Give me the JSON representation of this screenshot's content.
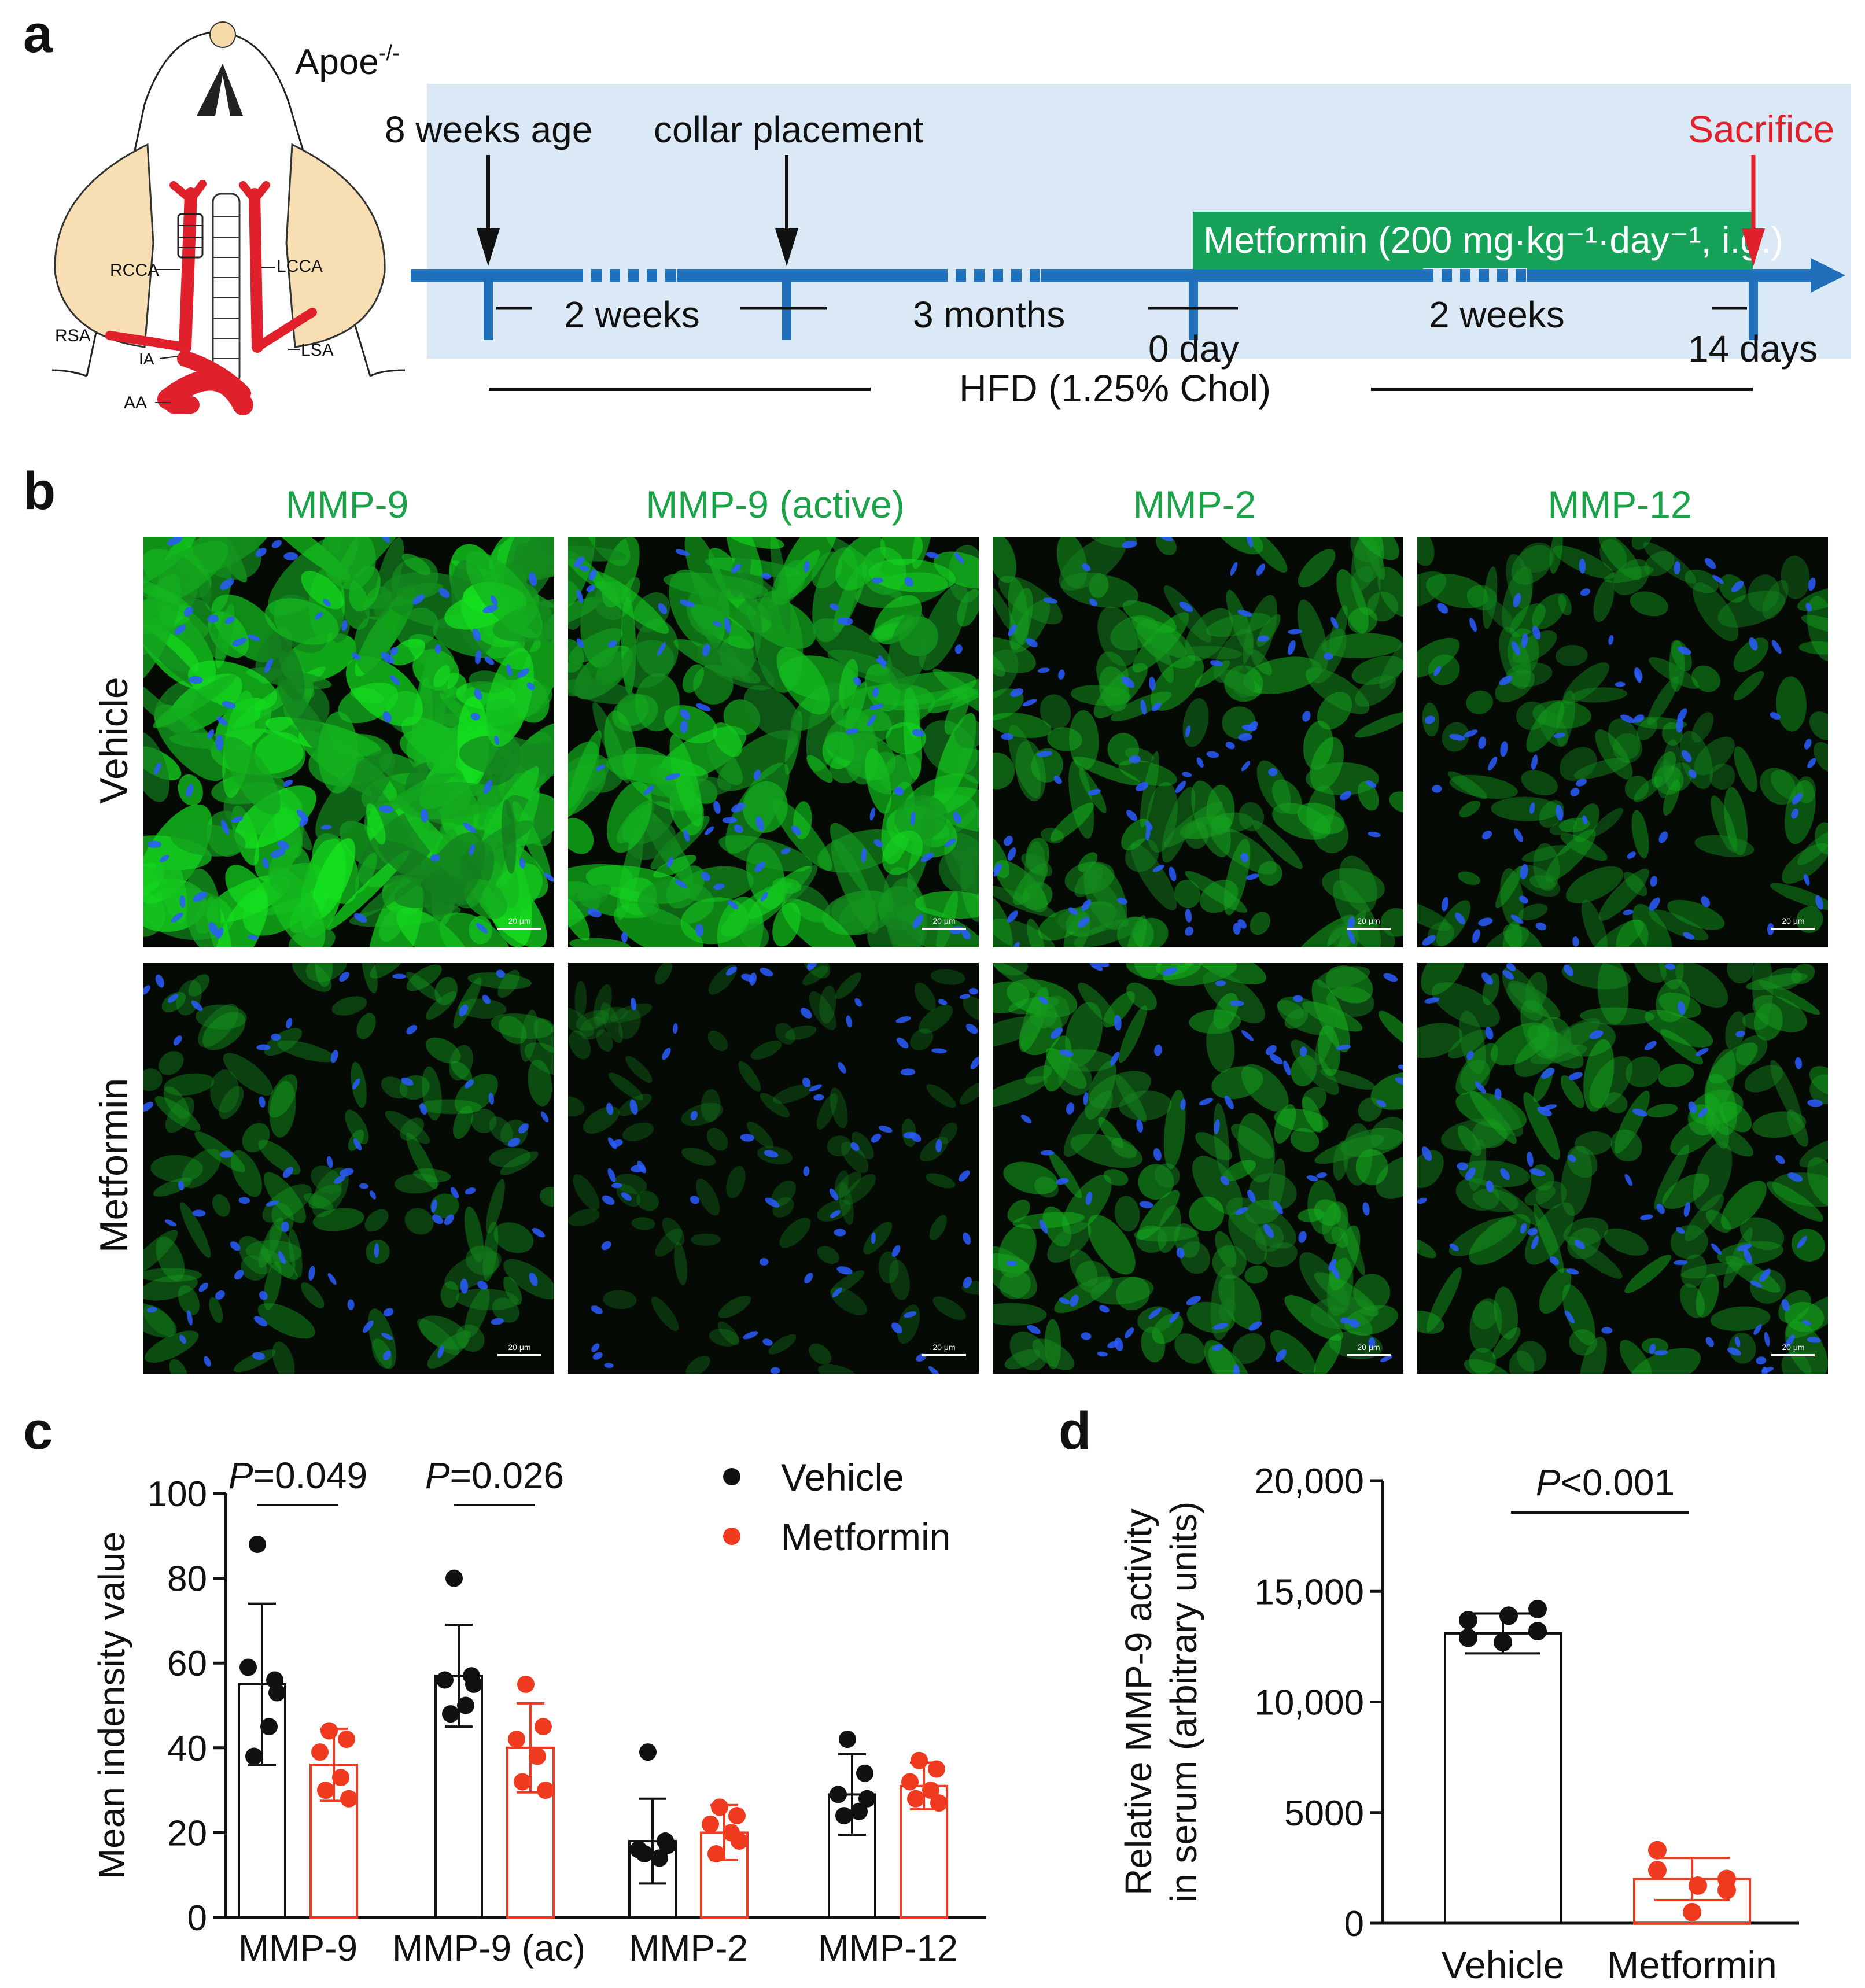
{
  "panels": {
    "a": "a",
    "b": "b",
    "c": "c",
    "d": "d"
  },
  "panel_a": {
    "genotype": "Apoe",
    "genotype_sup": "-/-",
    "vessels": {
      "rcca": "RCCA",
      "lcca": "LCCA",
      "rsa": "RSA",
      "ia": "IA",
      "lsa": "LSA",
      "aa": "AA"
    },
    "events": {
      "age": "8 weeks age",
      "collar": "collar placement",
      "sacrifice": "Sacrifice"
    },
    "intervals": {
      "i1": "2 weeks",
      "i2": "3 months",
      "i3": "2 weeks"
    },
    "days": {
      "start": "0 day",
      "end": "14 days"
    },
    "treatment": "Metformin (200 mg·kg⁻¹·day⁻¹, i.g.)",
    "diet": "HFD (1.25% Chol)",
    "colors": {
      "timeline": "#1f6fba",
      "background": "#dbe8f5",
      "treatment": "#17a25a",
      "sacrifice": "#e0202a"
    }
  },
  "panel_b": {
    "columns": [
      "MMP-9",
      "MMP-9 (active)",
      "MMP-2",
      "MMP-12"
    ],
    "rows": [
      "Vehicle",
      "Metformin"
    ],
    "scale_bar": "20 μm",
    "column_color": "#1aa349"
  },
  "chart_data": [
    {
      "type": "scatter",
      "title": "",
      "ylabel": "Mean indensity value",
      "ylim": [
        0,
        100
      ],
      "yticks": [
        "0",
        "20",
        "40",
        "60",
        "80",
        "100"
      ],
      "categories": [
        "MMP-9",
        "MMP-9 (ac)",
        "MMP-2",
        "MMP-12"
      ],
      "legend": [
        "Vehicle",
        "Metformin"
      ],
      "legend_position": "top-right",
      "series": [
        {
          "name": "Vehicle",
          "color": "#111111",
          "means": [
            55,
            57,
            18,
            29
          ],
          "sd": [
            19,
            12,
            10,
            9.5
          ],
          "points": [
            [
              88,
              56,
              59,
              45,
              38,
              53
            ],
            [
              80,
              57,
              56,
              50,
              48,
              55
            ],
            [
              39,
              18,
              16,
              14,
              15,
              17
            ],
            [
              42,
              34,
              29,
              25,
              24,
              28
            ]
          ]
        },
        {
          "name": "Metformin",
          "color": "#f03a1f",
          "means": [
            36,
            40,
            20,
            31
          ],
          "sd": [
            8.5,
            10.5,
            6.5,
            5.5
          ],
          "points": [
            [
              44,
              42,
              39,
              33,
              30,
              28
            ],
            [
              55,
              45,
              42,
              38,
              32,
              30
            ],
            [
              26,
              24,
              22,
              20,
              15,
              18
            ],
            [
              37,
              35,
              32,
              30,
              28,
              27
            ]
          ]
        }
      ],
      "annotations": [
        {
          "label_italic": "P",
          "label_rest": "=0.049",
          "group": 0
        },
        {
          "label_italic": "P",
          "label_rest": "=0.026",
          "group": 1
        }
      ]
    },
    {
      "type": "bar",
      "title": "",
      "ylabel_line1": "Relative MMP-9 activity",
      "ylabel_line2": "in serum (arbitrary units)",
      "ylim": [
        0,
        20000
      ],
      "yticks": [
        "0",
        "5000",
        "10,000",
        "15,000",
        "20,000"
      ],
      "categories": [
        "Vehicle",
        "Metformin"
      ],
      "values": [
        13100,
        2000
      ],
      "sd": [
        900,
        950
      ],
      "colors": [
        "#111111",
        "#f03a1f"
      ],
      "points": [
        [
          12900,
          13700,
          14200,
          13900,
          13200,
          12700
        ],
        [
          3300,
          2400,
          2000,
          1700,
          1500,
          500
        ]
      ],
      "annotation": {
        "label_italic": "P",
        "label_rest": "<0.001"
      }
    }
  ]
}
